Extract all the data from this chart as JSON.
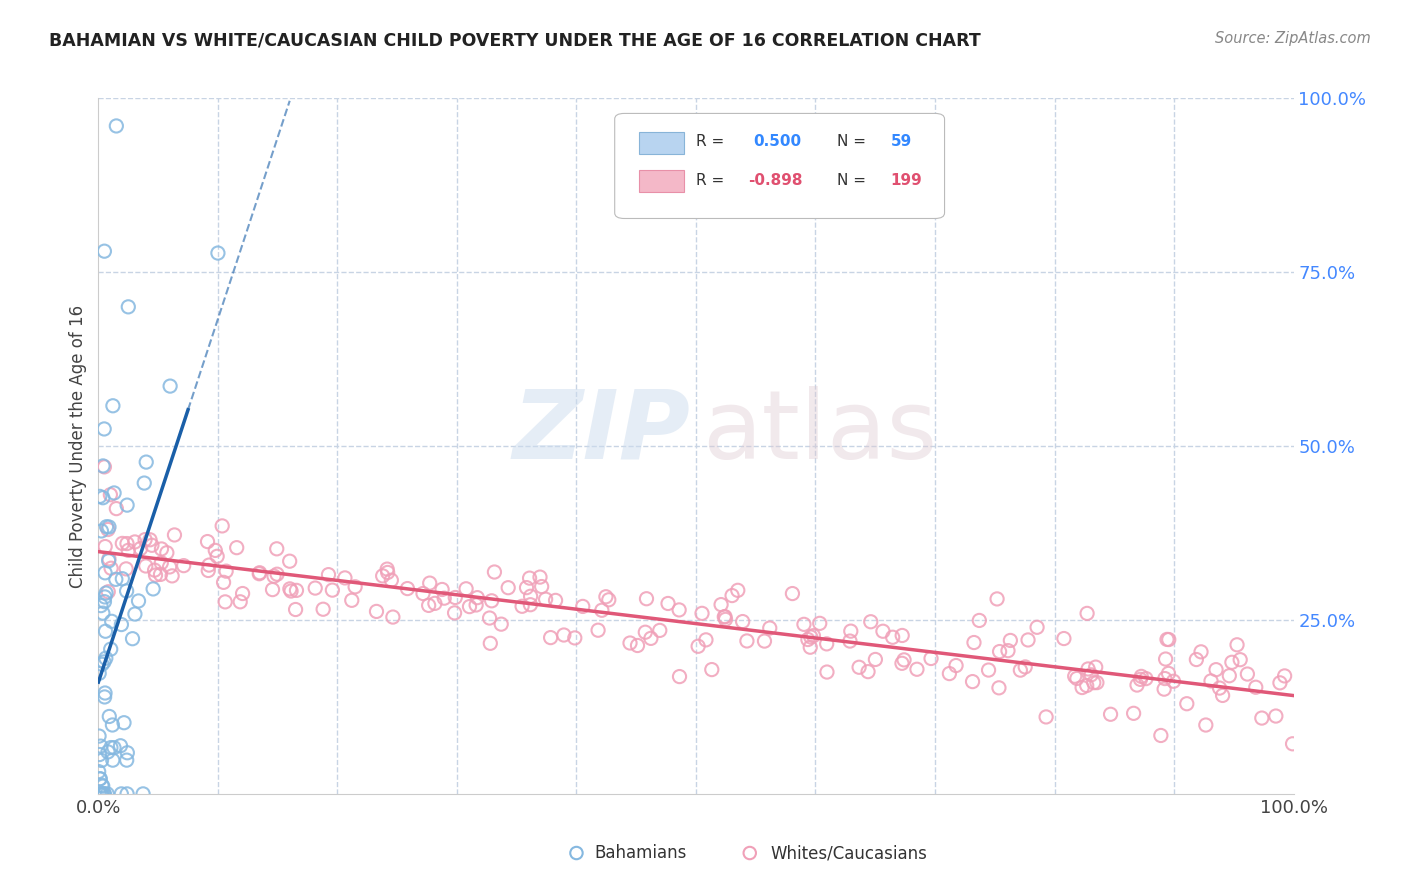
{
  "title": "BAHAMIAN VS WHITE/CAUCASIAN CHILD POVERTY UNDER THE AGE OF 16 CORRELATION CHART",
  "source": "Source: ZipAtlas.com",
  "ylabel": "Child Poverty Under the Age of 16",
  "bahamian_color": "#85b8e0",
  "bahamian_edge": "#5a9dc8",
  "white_color": "#f0a0b8",
  "white_edge": "#e07090",
  "trend_blue": "#1a5fa8",
  "trend_pink": "#e05878",
  "watermark_zip_color": "#c5d8ed",
  "watermark_atlas_color": "#d8c5cc",
  "background": "#ffffff",
  "grid_color": "#c8d4e4",
  "seed": 7,
  "bahamian_n": 59,
  "white_n": 199,
  "R_bahamian": 0.5,
  "R_white": -0.898,
  "legend_R_blue": "0.500",
  "legend_N_blue": "59",
  "legend_R_pink": "-0.898",
  "legend_N_pink": "199"
}
